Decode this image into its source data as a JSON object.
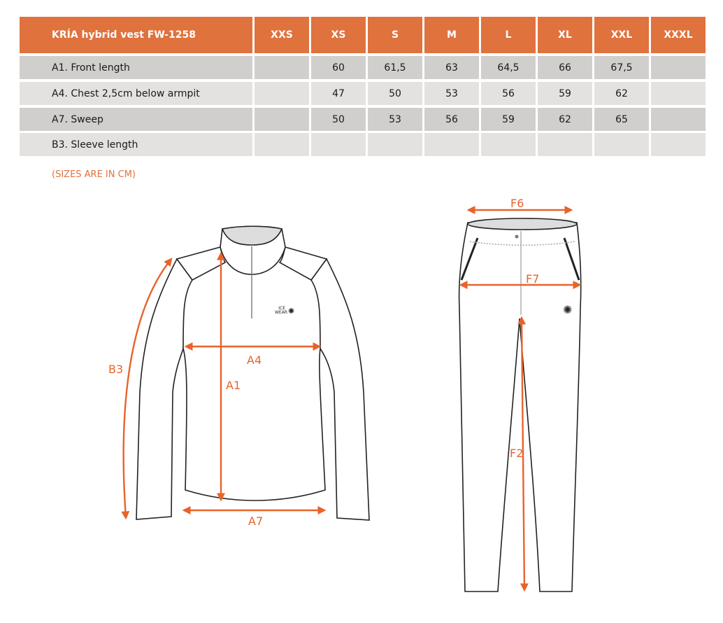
{
  "table": {
    "title": "KRÍA hybrid vest FW-1258",
    "sizes": [
      "XXS",
      "XS",
      "S",
      "M",
      "L",
      "XL",
      "XXL",
      "XXXL"
    ],
    "rows": [
      {
        "label": "A1. Front length",
        "values": [
          "",
          "60",
          "61,5",
          "63",
          "64,5",
          "66",
          "67,5",
          ""
        ]
      },
      {
        "label": "A4. Chest 2,5cm below armpit",
        "values": [
          "",
          "47",
          "50",
          "53",
          "56",
          "59",
          "62",
          ""
        ]
      },
      {
        "label": "A7. Sweep",
        "values": [
          "",
          "50",
          "53",
          "56",
          "59",
          "62",
          "65",
          ""
        ]
      },
      {
        "label": "B3. Sleeve length",
        "values": [
          "",
          "",
          "",
          "",
          "",
          "",
          "",
          ""
        ]
      }
    ]
  },
  "note": "(SIZES ARE IN CM)",
  "diagram": {
    "jacket_labels": {
      "b3": "B3",
      "a1": "A1",
      "a4": "A4",
      "a7": "A7"
    },
    "pants_labels": {
      "f6": "F6",
      "f7": "F7",
      "f2": "F2"
    },
    "logo_text": [
      "ICE",
      "WEAR"
    ]
  },
  "colors": {
    "header": "#E0723E",
    "row_dark": "#D0CFCD",
    "row_light": "#E3E2E0",
    "measure": "#E8632B"
  }
}
